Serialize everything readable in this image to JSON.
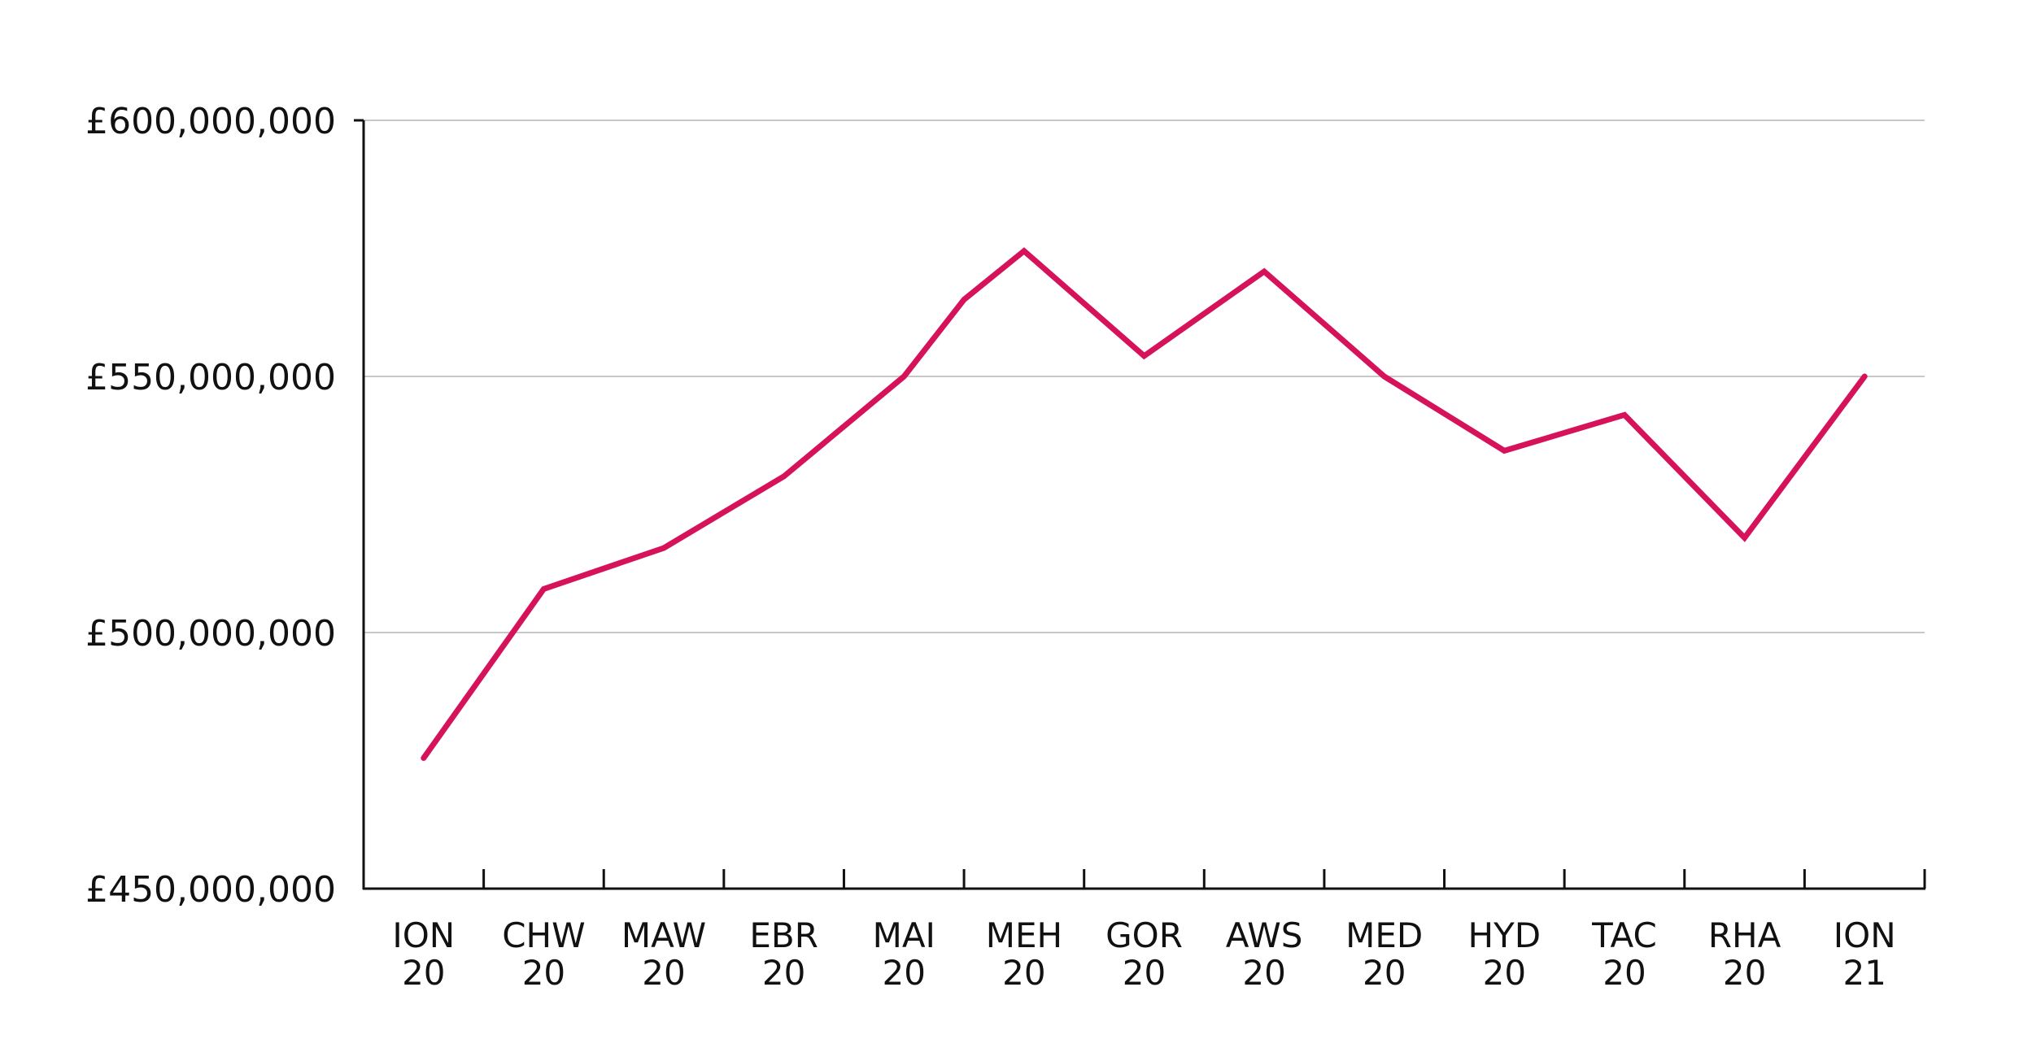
{
  "chart_data": {
    "type": "line",
    "title": "",
    "xlabel": "",
    "ylabel": "",
    "categories": [
      [
        "ION",
        "20"
      ],
      [
        "CHW",
        "20"
      ],
      [
        "MAW",
        "20"
      ],
      [
        "EBR",
        "20"
      ],
      [
        "MAI",
        "20"
      ],
      [
        "MEH",
        "20"
      ],
      [
        "GOR",
        "20"
      ],
      [
        "AWS",
        "20"
      ],
      [
        "MED",
        "20"
      ],
      [
        "HYD",
        "20"
      ],
      [
        "TAC",
        "20"
      ],
      [
        "RHA",
        "20"
      ],
      [
        "ION",
        "21"
      ]
    ],
    "x": [
      0,
      1,
      2,
      3,
      4,
      4.5,
      5,
      6,
      7,
      8,
      9,
      10,
      11,
      12
    ],
    "values": [
      475500000,
      508500000,
      516500000,
      530500000,
      550000000,
      565000000,
      574500000,
      554000000,
      570500000,
      550000000,
      535500000,
      542500000,
      518500000,
      550000000
    ],
    "ylim": [
      450000000,
      600000000
    ],
    "yticks": [
      450000000,
      500000000,
      550000000,
      600000000
    ],
    "ytick_labels": [
      "£450,000,000",
      "£500,000,000",
      "£550,000,000",
      "£600,000,000"
    ],
    "grid": true,
    "legend": "none",
    "line_color": "#d6135a",
    "grid_color": "#c8c8c8",
    "axis_color": "#111111"
  }
}
